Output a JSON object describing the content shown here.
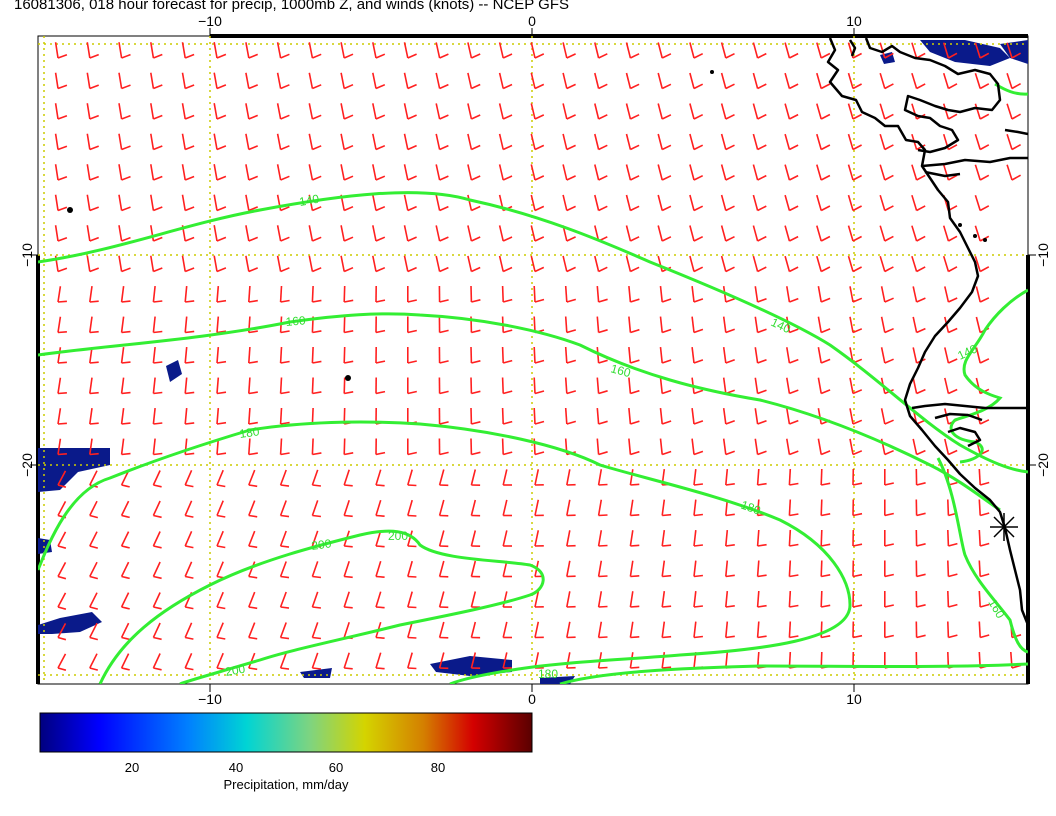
{
  "title": "16081306, 018 hour forecast for precip, 1000mb Z, and winds (knots) -- NCEP GFS",
  "axes": {
    "lon_ticks": [
      "−10",
      "0",
      "10"
    ],
    "lat_ticks": [
      "−10",
      "−20"
    ]
  },
  "contours": {
    "levels": [
      "140",
      "160",
      "180",
      "200"
    ],
    "labels": [
      "140",
      "160",
      "140",
      "160",
      "140",
      "180",
      "180",
      "200",
      "200",
      "200",
      "180",
      "160"
    ],
    "color": "#33ee33"
  },
  "winds": {
    "color": "#ff2020",
    "units": "knots"
  },
  "colorbar": {
    "label": "Precipitation, mm/day",
    "ticks": [
      "20",
      "40",
      "60",
      "80"
    ],
    "colors": [
      "#00007f",
      "#0000ff",
      "#007fff",
      "#00d4d4",
      "#7fd47f",
      "#d4d400",
      "#d47f00",
      "#d40000",
      "#5a0000"
    ]
  },
  "legend_symbol": "star-marker"
}
